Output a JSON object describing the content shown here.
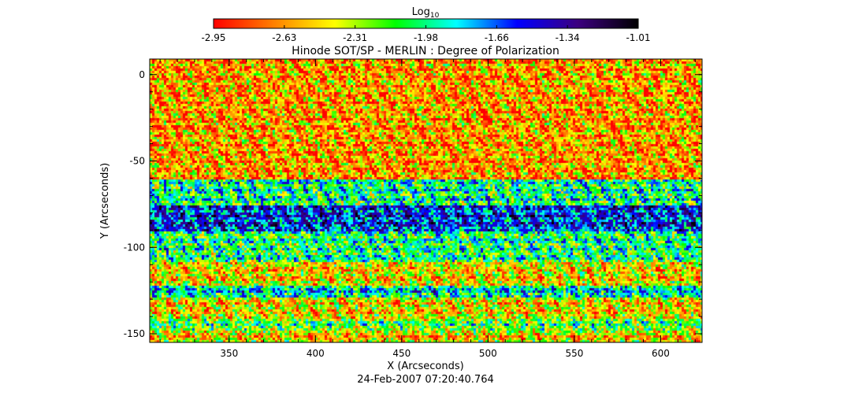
{
  "chart_data": {
    "type": "heatmap",
    "title": "Hinode SOT/SP - MERLIN : Degree of Polarization",
    "xlabel": "X (Arcseconds)",
    "ylabel": "Y (Arcseconds)",
    "timestamp": "24-Feb-2007 07:20:40.764",
    "colorbar": {
      "label_base": "Log",
      "label_sub": "10",
      "range": [
        -2.95,
        -1.01
      ],
      "ticks": [
        "-2.95",
        "-2.63",
        "-2.31",
        "-1.98",
        "-1.66",
        "-1.34",
        "-1.01"
      ]
    },
    "xlim": [
      304,
      624
    ],
    "ylim": [
      -155,
      9
    ],
    "x_ticks": [
      "350",
      "400",
      "450",
      "500",
      "550",
      "600"
    ],
    "y_ticks": [
      "0",
      "-50",
      "-100",
      "-150"
    ],
    "x_tick_values": [
      350,
      400,
      450,
      500,
      550,
      600
    ],
    "y_tick_values": [
      0,
      -50,
      -100,
      -150
    ],
    "colormap_stops": [
      "#ff0000",
      "#ff8000",
      "#ffff00",
      "#00ff00",
      "#00ffff",
      "#0000ff",
      "#3c0080",
      "#000000"
    ],
    "bands": [
      {
        "y_from": 9,
        "y_to": -60,
        "level": 0.18
      },
      {
        "y_from": -60,
        "y_to": -75,
        "level": 0.5
      },
      {
        "y_from": -75,
        "y_to": -90,
        "level": 0.72
      },
      {
        "y_from": -90,
        "y_to": -108,
        "level": 0.48
      },
      {
        "y_from": -108,
        "y_to": -122,
        "level": 0.25
      },
      {
        "y_from": -122,
        "y_to": -128,
        "level": 0.55
      },
      {
        "y_from": -128,
        "y_to": -140,
        "level": 0.25
      },
      {
        "y_from": -140,
        "y_to": -148,
        "level": 0.42
      },
      {
        "y_from": -148,
        "y_to": -155,
        "level": 0.25
      }
    ]
  }
}
